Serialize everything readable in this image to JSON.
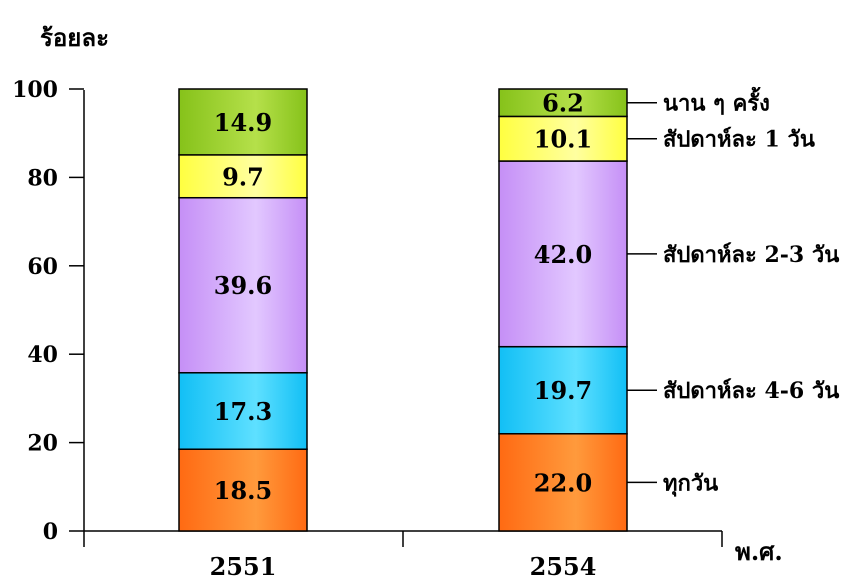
{
  "chart_data": {
    "type": "bar",
    "stacked": true,
    "ylabel": "ร้อยละ",
    "xlabel": "พ.ศ.",
    "ylim": [
      0,
      100
    ],
    "yticks": [
      0,
      20,
      40,
      60,
      80,
      100
    ],
    "categories": [
      "2551",
      "2554"
    ],
    "series": [
      {
        "name": "ทุกวัน",
        "values": [
          18.5,
          22.0
        ],
        "labels": [
          "18.5",
          "22.0"
        ],
        "color": "#ff6a13",
        "color2": "#ff9a3c"
      },
      {
        "name": "สัปดาห์ละ 4-6 วัน",
        "values": [
          17.3,
          19.7
        ],
        "labels": [
          "17.3",
          "19.7"
        ],
        "color": "#12bff5",
        "color2": "#5ee0ff"
      },
      {
        "name": "สัปดาห์ละ 2-3 วัน",
        "values": [
          39.6,
          42.0
        ],
        "labels": [
          "39.6",
          "42.0"
        ],
        "color": "#c58ff6",
        "color2": "#e2c8ff"
      },
      {
        "name": "สัปดาห์ละ 1 วัน",
        "values": [
          9.7,
          10.1
        ],
        "labels": [
          "9.7",
          "10.1"
        ],
        "color": "#ffff40",
        "color2": "#ffffa0"
      },
      {
        "name": "นาน ๆ ครั้ง",
        "values": [
          14.9,
          6.2
        ],
        "labels": [
          "14.9",
          "6.2"
        ],
        "color": "#86c21a",
        "color2": "#b5e04a"
      }
    ],
    "legend": "right-of-last-bar",
    "grid": false
  }
}
